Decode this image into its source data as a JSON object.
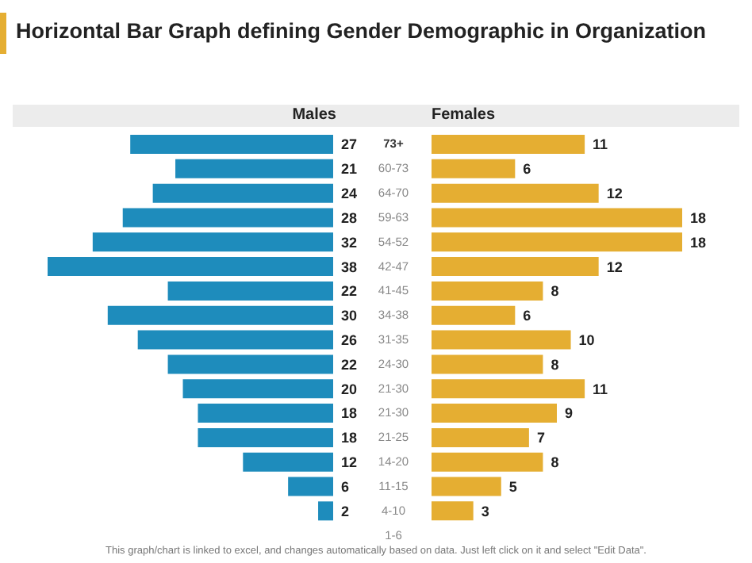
{
  "chart_data": [
    {
      "type": "bar",
      "orientation": "horizontal",
      "title": "Horizontal Bar Graph defining Gender Demographic in Organization",
      "categories": [
        "73+",
        "60-73",
        "64-70",
        "59-63",
        "54-52",
        "42-47",
        "41-45",
        "34-38",
        "31-35",
        "24-30",
        "21-30",
        "21-30",
        "21-25",
        "14-20",
        "11-15",
        "4-10",
        "1-6"
      ],
      "series": [
        {
          "name": "Males",
          "color": "#1e8cbc",
          "values": [
            27,
            21,
            24,
            28,
            32,
            38,
            22,
            30,
            26,
            22,
            20,
            18,
            18,
            12,
            6,
            2,
            null
          ]
        }
      ],
      "data_labels": true,
      "tick_labels": "y",
      "grid": false,
      "annotations": [
        "This graph/chart is linked to excel,  and changes automatically based on data. Just left click on it and select \"Edit Data\"."
      ]
    },
    {
      "type": "bar",
      "orientation": "horizontal",
      "series": [
        {
          "name": "Females",
          "color": "#e5ae32",
          "values": [
            11,
            6,
            12,
            18,
            18,
            12,
            8,
            6,
            10,
            8,
            11,
            9,
            7,
            8,
            5,
            3,
            null
          ]
        }
      ],
      "data_labels": true,
      "tick_labels": false
    }
  ]
}
